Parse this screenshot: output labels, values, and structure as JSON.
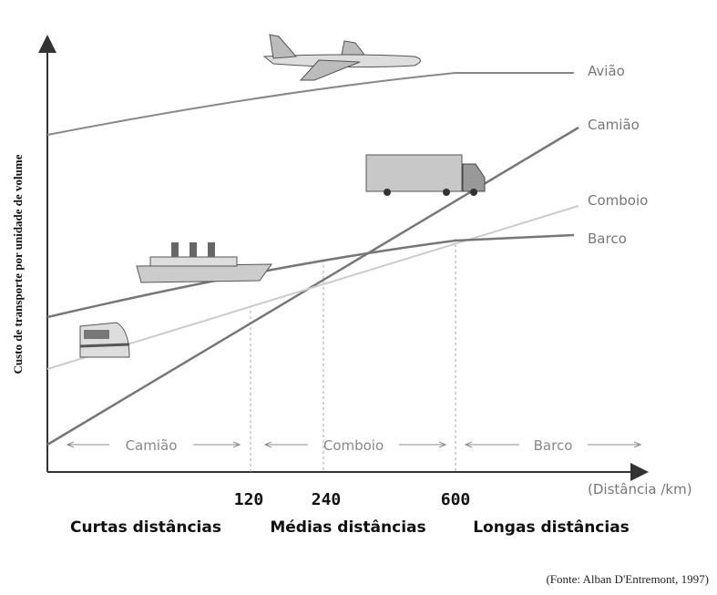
{
  "axes": {
    "y_label": "Custo de transporte por unidade de volume",
    "x_label": "(Distância /km)"
  },
  "lines": [
    {
      "label": "Avião"
    },
    {
      "label": "Camião"
    },
    {
      "label": "Comboio"
    },
    {
      "label": "Barco"
    }
  ],
  "zones": [
    "Camião",
    "Comboio",
    "Barco"
  ],
  "x_marks": [
    120,
    240,
    600
  ],
  "regions": [
    "Curtas distâncias",
    "Médias distâncias",
    "Longas distâncias"
  ],
  "source": "(Fonte: Alban D'Entremont, 1997)"
}
